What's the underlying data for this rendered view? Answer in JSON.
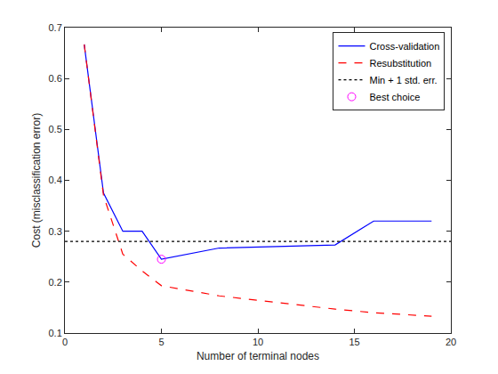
{
  "chart_data": {
    "type": "line",
    "x_label": "Number of terminal nodes",
    "y_label": "Cost (misclassification error)",
    "xlim": [
      0,
      20
    ],
    "xticks": [
      0,
      5,
      10,
      15,
      20
    ],
    "ylim": [
      0.1,
      0.7
    ],
    "yticks": [
      0.1,
      0.2,
      0.3,
      0.4,
      0.5,
      0.6,
      0.7
    ],
    "grid": false,
    "legend": "northeast",
    "series": [
      {
        "name": "Cross-validation",
        "type": "line",
        "color": "#0000ff",
        "line_style": "solid",
        "x": [
          1,
          2,
          3,
          4,
          5,
          8,
          14,
          16,
          19
        ],
        "values": [
          0.667,
          0.375,
          0.3,
          0.3,
          0.245,
          0.267,
          0.273,
          0.32,
          0.32
        ]
      },
      {
        "name": "Resubstitution",
        "type": "line",
        "color": "#ff0000",
        "line_style": "dashed",
        "x": [
          1,
          2,
          3,
          4,
          5,
          8,
          14,
          16,
          19
        ],
        "values": [
          0.667,
          0.37,
          0.255,
          0.222,
          0.193,
          0.173,
          0.147,
          0.14,
          0.133
        ]
      },
      {
        "name": "Min + 1 std. err.",
        "type": "line",
        "color": "#000000",
        "line_style": "dotted",
        "x": [
          0,
          20
        ],
        "values": [
          0.28,
          0.28
        ]
      },
      {
        "name": "Best choice",
        "type": "scatter",
        "color": "#ff00ff",
        "marker": "circle",
        "x": [
          5
        ],
        "values": [
          0.245
        ]
      }
    ]
  }
}
